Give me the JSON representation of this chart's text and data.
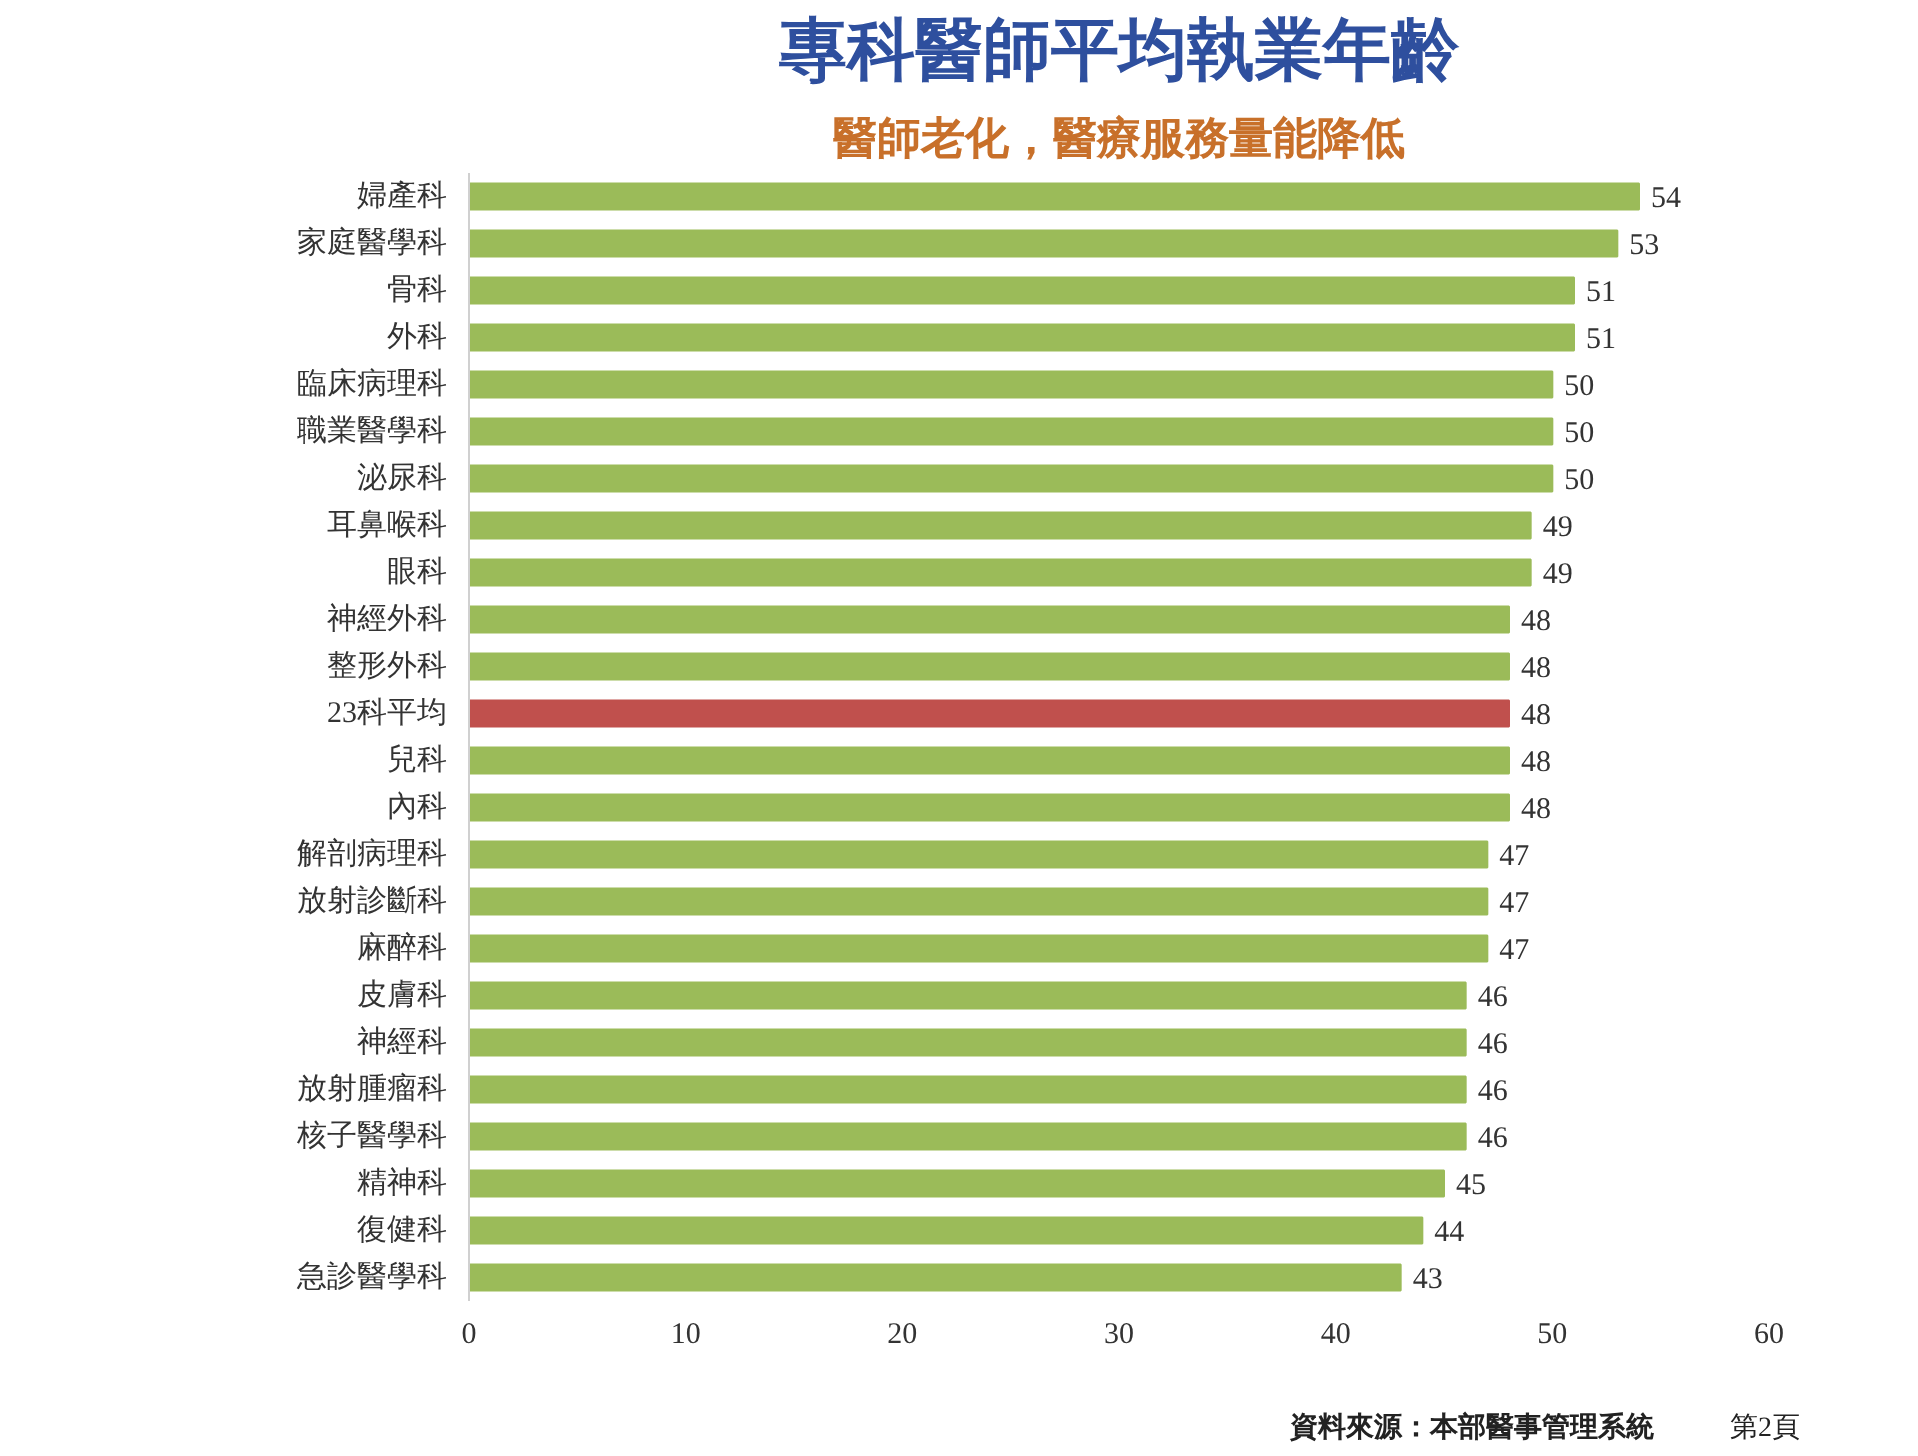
{
  "chart_data": {
    "type": "bar",
    "orientation": "horizontal",
    "title": "專科醫師平均執業年齡",
    "subtitle": "醫師老化，醫療服務量能降低",
    "categories": [
      "婦產科",
      "家庭醫學科",
      "骨科",
      "外科",
      "臨床病理科",
      "職業醫學科",
      "泌尿科",
      "耳鼻喉科",
      "眼科",
      "神經外科",
      "整形外科",
      "23科平均",
      "兒科",
      "內科",
      "解剖病理科",
      "放射診斷科",
      "麻醉科",
      "皮膚科",
      "神經科",
      "放射腫瘤科",
      "核子醫學科",
      "精神科",
      "復健科",
      "急診醫學科"
    ],
    "values": [
      54,
      53,
      51,
      51,
      50,
      50,
      50,
      49,
      49,
      48,
      48,
      48,
      48,
      48,
      47,
      47,
      47,
      46,
      46,
      46,
      46,
      45,
      44,
      43
    ],
    "colors": [
      "#9bbb59",
      "#9bbb59",
      "#9bbb59",
      "#9bbb59",
      "#9bbb59",
      "#9bbb59",
      "#9bbb59",
      "#9bbb59",
      "#9bbb59",
      "#9bbb59",
      "#9bbb59",
      "#c0504d",
      "#9bbb59",
      "#9bbb59",
      "#9bbb59",
      "#9bbb59",
      "#9bbb59",
      "#9bbb59",
      "#9bbb59",
      "#9bbb59",
      "#9bbb59",
      "#9bbb59",
      "#9bbb59",
      "#9bbb59"
    ],
    "xlim": [
      0,
      60
    ],
    "xticks": [
      0,
      10,
      20,
      30,
      40,
      50,
      60
    ],
    "data_labels": true,
    "grid": false,
    "annotations": [
      "資料來源：本部醫事管理系統",
      "第2頁"
    ]
  }
}
